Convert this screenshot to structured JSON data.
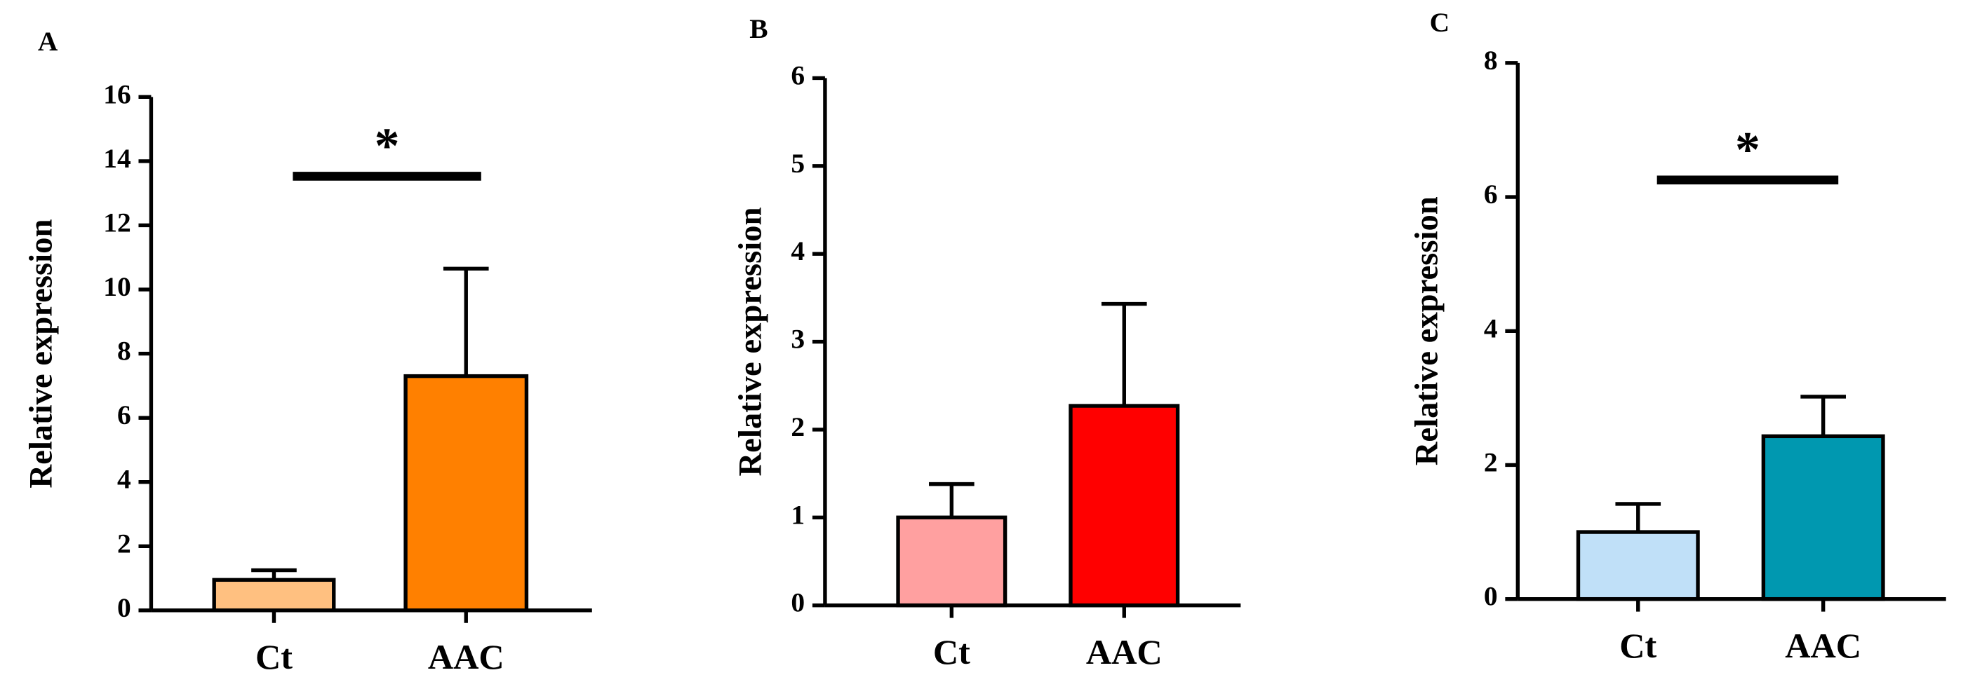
{
  "chart_data": [
    {
      "type": "bar",
      "panel_label": "A",
      "y_label": "Relative expression",
      "categories": [
        "Ct",
        "AAC"
      ],
      "values": [
        0.95,
        7.3
      ],
      "errors": [
        0.3,
        3.35
      ],
      "colors": [
        "#ffc080",
        "#ff8000"
      ],
      "ylim": [
        0,
        16
      ],
      "yticks": [
        0,
        2,
        4,
        6,
        8,
        10,
        12,
        14,
        16
      ],
      "annotation": "*"
    },
    {
      "type": "bar",
      "panel_label": "B",
      "y_label": "Relative expression",
      "categories": [
        "Ct",
        "AAC"
      ],
      "values": [
        1.0,
        2.27
      ],
      "errors": [
        0.38,
        1.16
      ],
      "colors": [
        "#ffa0a0",
        "#ff0000"
      ],
      "ylim": [
        0,
        6
      ],
      "yticks": [
        0,
        1,
        2,
        3,
        4,
        5,
        6
      ]
    },
    {
      "type": "bar",
      "panel_label": "C",
      "y_label": "Relative expression",
      "categories": [
        "Ct",
        "AAC"
      ],
      "values": [
        1.0,
        2.43
      ],
      "errors": [
        0.42,
        0.59
      ],
      "colors": [
        "#c0e0f8",
        "#0098b0"
      ],
      "ylim": [
        0,
        8
      ],
      "yticks": [
        0,
        2,
        4,
        6,
        8
      ],
      "annotation": "*"
    }
  ]
}
